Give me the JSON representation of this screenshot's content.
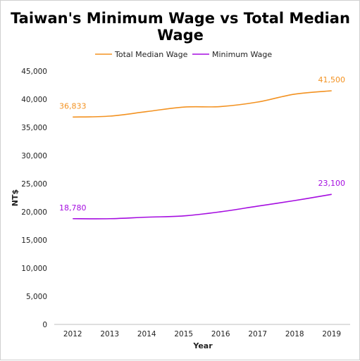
{
  "chart_data": {
    "type": "line",
    "title_lines": [
      "Taiwan's Minimum Wage vs Total Median",
      "Wage"
    ],
    "xlabel": "Year",
    "ylabel": "NT$",
    "categories": [
      "2012",
      "2013",
      "2014",
      "2015",
      "2016",
      "2017",
      "2018",
      "2019"
    ],
    "ylim": [
      0,
      45000
    ],
    "yticks": [
      0,
      5000,
      10000,
      15000,
      20000,
      25000,
      30000,
      35000,
      40000,
      45000
    ],
    "ytick_labels": [
      "0",
      "5,000",
      "10,000",
      "15,000",
      "20,000",
      "25,000",
      "30,000",
      "35,000",
      "40,000",
      "45,000"
    ],
    "grid": false,
    "legend_position": "top",
    "series": [
      {
        "name": "Total Median Wage",
        "color": "#f39221",
        "values": [
          36833,
          37000,
          37800,
          38600,
          38700,
          39500,
          40900,
          41500
        ],
        "labels": [
          {
            "index": 0,
            "text": "36,833"
          },
          {
            "index": 7,
            "text": "41,500"
          }
        ]
      },
      {
        "name": "Minimum Wage",
        "color": "#a50de0",
        "values": [
          18780,
          18780,
          19047,
          19273,
          20008,
          21009,
          22000,
          23100
        ],
        "labels": [
          {
            "index": 0,
            "text": "18,780"
          },
          {
            "index": 7,
            "text": "23,100"
          }
        ]
      }
    ]
  }
}
